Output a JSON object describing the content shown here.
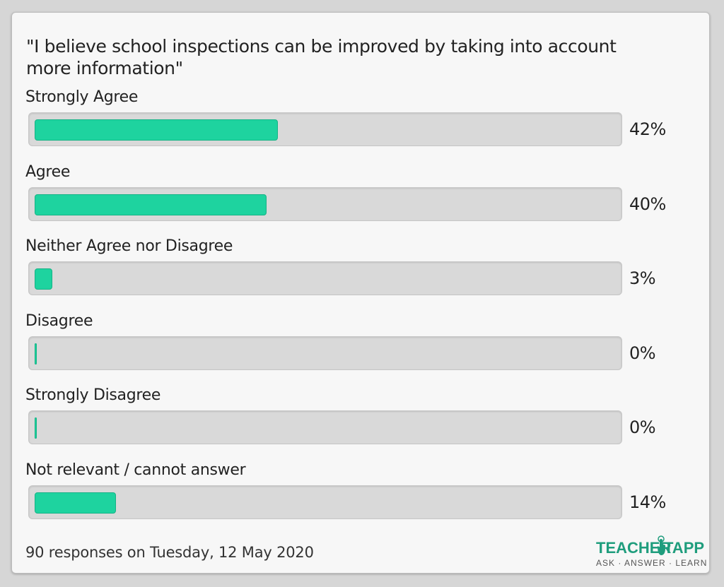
{
  "colors": {
    "bar_fill": "#1ed39f",
    "track": "#d9d9d9",
    "card_background": "#f7f7f7",
    "logo_green": "#1f9d7d"
  },
  "chart_data": {
    "type": "bar",
    "orientation": "horizontal",
    "title": "\"I believe school inspections can be improved by taking into account more information\"",
    "categories": [
      "Strongly Agree",
      "Agree",
      "Neither Agree nor Disagree",
      "Disagree",
      "Strongly Disagree",
      "Not relevant / cannot answer"
    ],
    "values": [
      42,
      40,
      3,
      0,
      0,
      14
    ],
    "value_labels": [
      "42%",
      "40%",
      "3%",
      "0%",
      "0%",
      "14%"
    ],
    "xlim": [
      0,
      100
    ],
    "unit": "%",
    "grid": false
  },
  "footer": {
    "responses": "90 responses on Tuesday, 12 May 2020"
  },
  "logo": {
    "word1": "TEACHER",
    "word2": "TAPP",
    "tagline": "ASK · ANSWER · LEARN",
    "icon": "hand-pointer-icon"
  }
}
